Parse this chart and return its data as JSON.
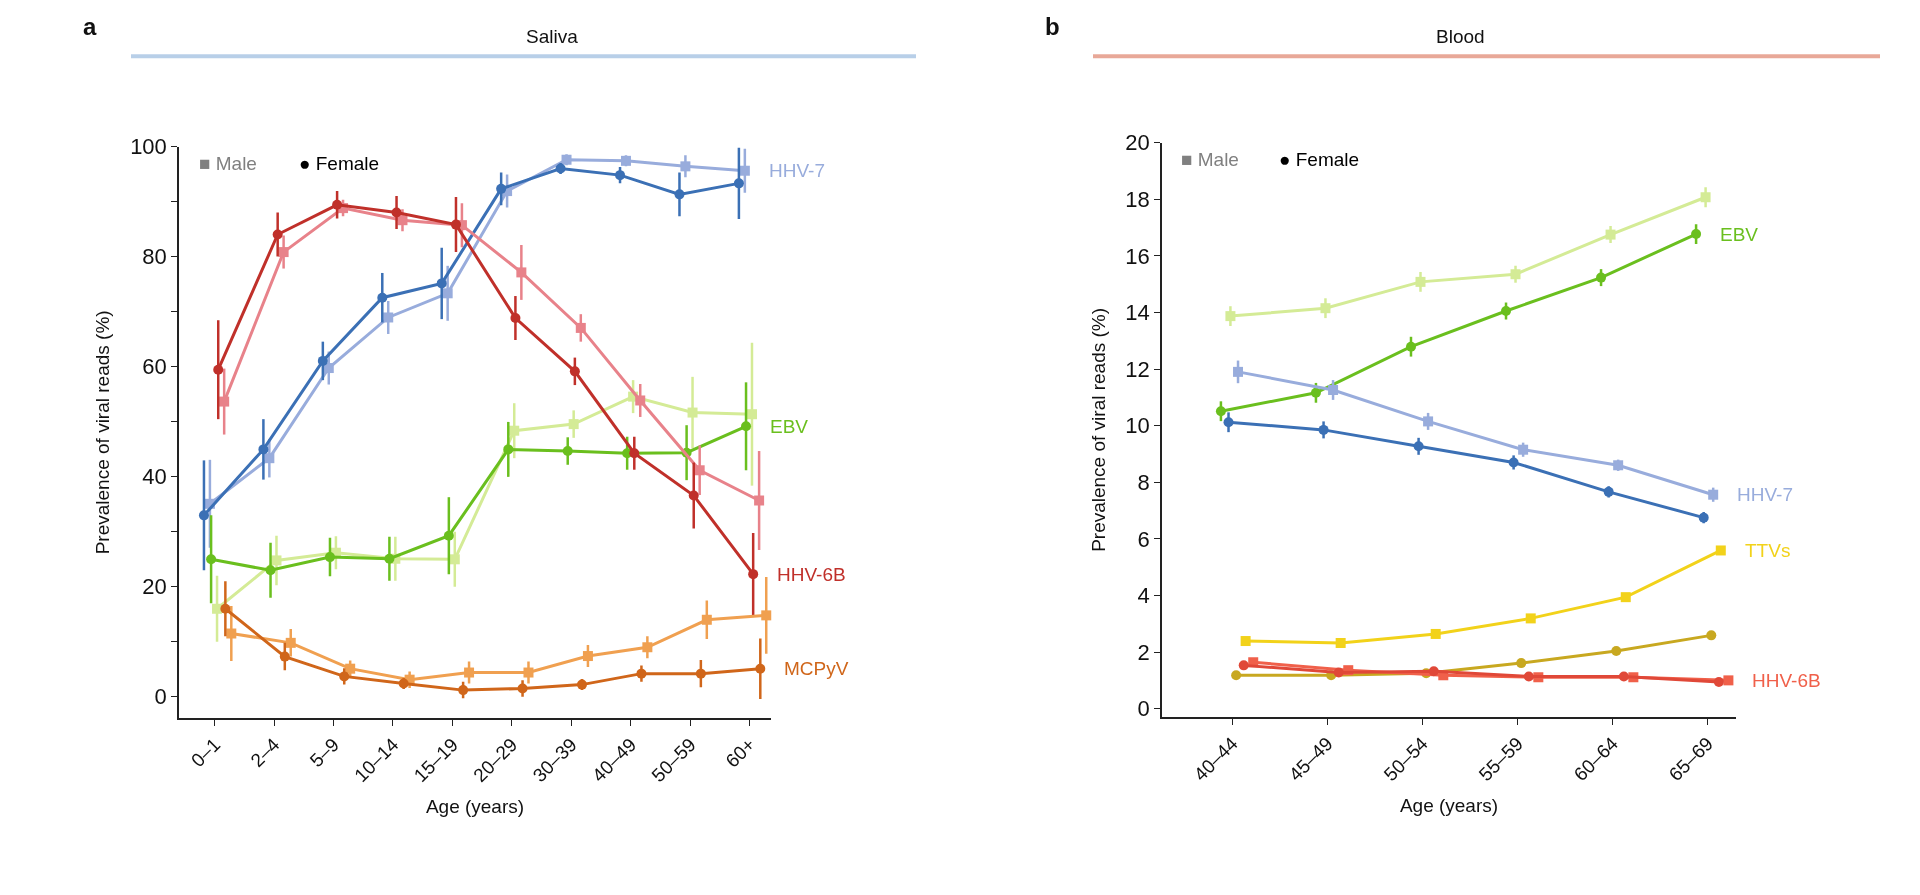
{
  "chart_data": [
    {
      "type": "line",
      "title": "Saliva",
      "xlabel": "Age (years)",
      "ylabel": "Prevalence of viral reads (%)",
      "annotations": [
        "a",
        "■ Male",
        "● Female"
      ],
      "legend": "right",
      "line_style": "solid",
      "categories": [
        "0–1",
        "2–4",
        "5–9",
        "10–14",
        "15–19",
        "20–29",
        "30–39",
        "40–49",
        "50–59",
        "60+"
      ],
      "ylim": [
        -4,
        100
      ],
      "yticks": [
        0,
        {
          "value": 10,
          "label": null
        },
        20,
        {
          "value": 30,
          "label": null
        },
        40,
        {
          "value": 50,
          "label": null
        },
        60,
        {
          "value": 70,
          "label": null
        },
        80,
        {
          "value": 90,
          "label": null
        },
        100
      ],
      "series": [
        {
          "color": "#98acdc",
          "marker": "square",
          "name": "HHV-7",
          "values": [
            35,
            43.3,
            59.7,
            68.9,
            73.3,
            91.9,
            97.6,
            97.4,
            96.4,
            95.6
          ],
          "errors": [
            8,
            3.5,
            3,
            3,
            5,
            3,
            1,
            1,
            2,
            4
          ]
        },
        {
          "color": "#3b70b5",
          "marker": "circle",
          "values": [
            32.9,
            44.9,
            61,
            72.5,
            75.1,
            92.3,
            96,
            94.8,
            91.3,
            93.3
          ],
          "errors": [
            10,
            5.5,
            3.5,
            4.5,
            6.5,
            3,
            1,
            1.5,
            4,
            6.5
          ]
        },
        {
          "color": "#d4eb96",
          "marker": "square",
          "values": [
            15.9,
            24.7,
            26.1,
            25,
            24.9,
            48.3,
            49.5,
            54.5,
            51.6,
            51.3
          ],
          "errors": [
            6,
            4.5,
            3,
            4,
            5,
            5,
            2.5,
            3,
            6.5,
            13
          ]
        },
        {
          "color": "#6abf1e",
          "marker": "circle",
          "name": "EBV",
          "values": [
            24.9,
            22.9,
            25.3,
            25,
            29.2,
            44.9,
            44.6,
            44.2,
            44.3,
            49.1
          ],
          "errors": [
            8,
            5,
            3.5,
            4,
            7,
            5,
            2.5,
            3,
            5,
            8
          ]
        },
        {
          "color": "#e8828a",
          "marker": "square",
          "values": [
            53.6,
            80.8,
            88.8,
            86.6,
            85.7,
            77.1,
            67,
            53.8,
            41.1,
            35.6
          ],
          "errors": [
            6,
            3,
            1.5,
            2,
            4,
            5,
            2.5,
            3,
            4.5,
            9
          ]
        },
        {
          "color": "#c0302a",
          "marker": "circle",
          "name": "HHV-6B",
          "values": [
            59.4,
            84,
            89.4,
            88,
            85.8,
            68.8,
            59.1,
            44.2,
            36.5,
            22.2
          ],
          "errors": [
            9,
            4,
            2.5,
            3,
            5,
            4,
            2.5,
            3,
            6,
            7.5
          ]
        },
        {
          "color": "#f0a050",
          "marker": "square",
          "values": [
            11.4,
            9.7,
            5,
            3,
            4.3,
            4.3,
            7.3,
            8.9,
            13.9,
            14.7
          ],
          "errors": [
            5,
            2.5,
            1.5,
            1.5,
            2,
            2,
            2,
            2,
            3.5,
            7
          ]
        },
        {
          "color": "#d0661a",
          "marker": "circle",
          "name": "MCPyV",
          "values": [
            15.9,
            7.2,
            3.6,
            2.3,
            1.1,
            1.4,
            2.1,
            4.1,
            4.1,
            5
          ],
          "errors": [
            5,
            2.5,
            1.5,
            1,
            1.5,
            1.5,
            1,
            1.5,
            2.5,
            5.5
          ]
        }
      ]
    },
    {
      "type": "line",
      "title": "Blood",
      "xlabel": "Age (years)",
      "ylabel": "Prevalence of viral reads (%)",
      "annotations": [
        "b",
        "■ Male",
        "● Female"
      ],
      "legend": "right",
      "line_style": "solid",
      "categories": [
        "40–44",
        "45–49",
        "50–54",
        "55–59",
        "60–64",
        "65–69"
      ],
      "ylim": [
        -0.3,
        20
      ],
      "yticks": [
        0,
        2,
        4,
        6,
        8,
        10,
        12,
        14,
        16,
        18,
        20
      ],
      "series": [
        {
          "color": "#d4eb96",
          "marker": "square",
          "values": [
            13.87,
            14.15,
            15.08,
            15.35,
            16.75,
            18.07
          ],
          "errors": [
            0.35,
            0.35,
            0.35,
            0.3,
            0.3,
            0.35
          ]
        },
        {
          "color": "#6abf1e",
          "marker": "circle",
          "name": "EBV",
          "values": [
            10.51,
            11.16,
            12.79,
            14.05,
            15.23,
            16.77
          ],
          "errors": [
            0.35,
            0.35,
            0.35,
            0.3,
            0.3,
            0.35
          ]
        },
        {
          "color": "#98acdc",
          "marker": "square",
          "name": "HHV-7",
          "values": [
            11.9,
            11.26,
            10.15,
            9.15,
            8.6,
            7.56
          ],
          "errors": [
            0.4,
            0.35,
            0.3,
            0.25,
            0.2,
            0.25
          ]
        },
        {
          "color": "#3b70b5",
          "marker": "circle",
          "values": [
            10.12,
            9.85,
            9.27,
            8.7,
            7.66,
            6.75
          ],
          "errors": [
            0.35,
            0.3,
            0.3,
            0.25,
            0.2,
            0.2
          ]
        },
        {
          "color": "#f2d21a",
          "marker": "square",
          "name": "TTVs",
          "values": [
            2.39,
            2.32,
            2.64,
            3.19,
            3.94,
            5.59
          ]
        },
        {
          "color": "#c8a820",
          "marker": "circle",
          "values": [
            1.18,
            1.18,
            1.25,
            1.61,
            2.04,
            2.59
          ]
        },
        {
          "color": "#f0604a",
          "marker": "square",
          "name": "HHV-6B",
          "values": [
            1.64,
            1.36,
            1.18,
            1.11,
            1.11,
            1.0
          ]
        },
        {
          "color": "#e04838",
          "marker": "circle",
          "values": [
            1.53,
            1.28,
            1.32,
            1.14,
            1.14,
            0.94
          ]
        }
      ]
    }
  ]
}
